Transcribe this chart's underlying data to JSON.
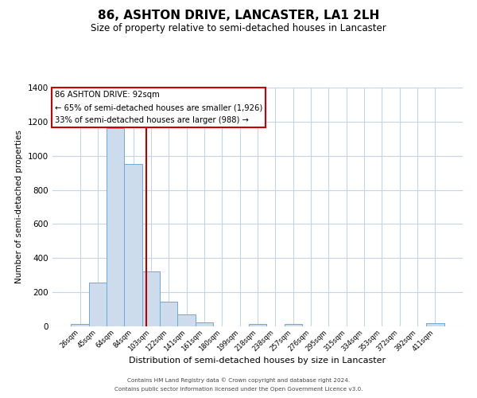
{
  "title": "86, ASHTON DRIVE, LANCASTER, LA1 2LH",
  "subtitle": "Size of property relative to semi-detached houses in Lancaster",
  "xlabel": "Distribution of semi-detached houses by size in Lancaster",
  "ylabel": "Number of semi-detached properties",
  "bin_labels": [
    "26sqm",
    "45sqm",
    "64sqm",
    "84sqm",
    "103sqm",
    "122sqm",
    "141sqm",
    "161sqm",
    "180sqm",
    "199sqm",
    "218sqm",
    "238sqm",
    "257sqm",
    "276sqm",
    "295sqm",
    "315sqm",
    "334sqm",
    "353sqm",
    "372sqm",
    "392sqm",
    "411sqm"
  ],
  "bin_values": [
    15,
    255,
    1160,
    950,
    320,
    145,
    70,
    25,
    0,
    0,
    15,
    0,
    15,
    0,
    0,
    0,
    0,
    0,
    0,
    0,
    20
  ],
  "bar_color": "#cddcec",
  "bar_edge_color": "#6aaad4",
  "vline_x": 3.72,
  "vline_color": "#bb0000",
  "annotation_title": "86 ASHTON DRIVE: 92sqm",
  "annotation_line1": "← 65% of semi-detached houses are smaller (1,926)",
  "annotation_line2": "33% of semi-detached houses are larger (988) →",
  "annotation_box_color": "#ffffff",
  "annotation_box_edge": "#cc0000",
  "ylim": [
    0,
    1400
  ],
  "yticks": [
    0,
    200,
    400,
    600,
    800,
    1000,
    1200,
    1400
  ],
  "footer1": "Contains HM Land Registry data © Crown copyright and database right 2024.",
  "footer2": "Contains public sector information licensed under the Open Government Licence v3.0.",
  "background_color": "#ffffff",
  "grid_color": "#c5d5e5",
  "title_fontsize": 11,
  "subtitle_fontsize": 8.5
}
